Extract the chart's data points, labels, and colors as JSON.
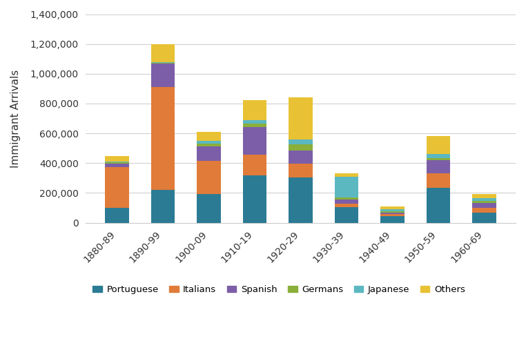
{
  "categories": [
    "1880-89",
    "1890-99",
    "1900-09",
    "1910-19",
    "1920-29",
    "1930-39",
    "1940-49",
    "1950-59",
    "1960-69"
  ],
  "series": {
    "Portuguese": [
      100000,
      220000,
      195000,
      318000,
      302000,
      105000,
      45000,
      235000,
      70000
    ],
    "Italians": [
      275000,
      690000,
      220000,
      138000,
      95000,
      25000,
      15000,
      95000,
      30000
    ],
    "Spanish": [
      20000,
      160000,
      100000,
      185000,
      90000,
      25000,
      10000,
      90000,
      35000
    ],
    "Germans": [
      10000,
      5000,
      15000,
      25000,
      40000,
      15000,
      5000,
      15000,
      10000
    ],
    "Japanese": [
      5000,
      5000,
      20000,
      25000,
      30000,
      140000,
      15000,
      25000,
      20000
    ],
    "Others": [
      40000,
      120000,
      60000,
      130000,
      285000,
      20000,
      20000,
      120000,
      30000
    ]
  },
  "colors": {
    "Portuguese": "#2B7B95",
    "Italians": "#E07B39",
    "Spanish": "#7B5EA7",
    "Germans": "#8AAF3A",
    "Japanese": "#5BB8C1",
    "Others": "#E8C234"
  },
  "ylabel": "Immigrant Arrivals",
  "ylim": [
    0,
    1400000
  ],
  "yticks": [
    0,
    200000,
    400000,
    600000,
    800000,
    1000000,
    1200000,
    1400000
  ],
  "background_color": "#ffffff",
  "grid_color": "#d0d0d0",
  "legend_order": [
    "Portuguese",
    "Italians",
    "Spanish",
    "Germans",
    "Japanese",
    "Others"
  ]
}
